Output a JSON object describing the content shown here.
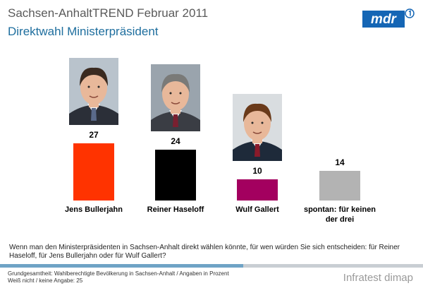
{
  "header": {
    "title": "Sachsen-AnhaltTREND Februar 2011",
    "subtitle": "Direktwahl Ministerpräsident"
  },
  "logo": {
    "text": "mdr",
    "icon": "ard-one-icon",
    "color": "#1566b5"
  },
  "chart_data": {
    "type": "bar",
    "categories": [
      "Jens Bullerjahn",
      "Reiner Haseloff",
      "Wulf Gallert",
      "spontan: für keinen der drei"
    ],
    "category_lines": [
      [
        "Jens Bullerjahn"
      ],
      [
        "Reiner Haseloff"
      ],
      [
        "Wulf Gallert"
      ],
      [
        "spontan: für keinen",
        "der drei"
      ]
    ],
    "values": [
      27,
      24,
      10,
      14
    ],
    "data_labels": [
      "27",
      "24",
      "10",
      "14"
    ],
    "colors": [
      "#ff3300",
      "#000000",
      "#a3005f",
      "#b3b3b3"
    ],
    "portraits": [
      true,
      true,
      true,
      false
    ],
    "ylim": [
      0,
      40
    ],
    "grid": false,
    "title": "",
    "xlabel": "",
    "ylabel": ""
  },
  "footer": {
    "question": "Wenn man den Ministerpräsidenten in Sachsen-Anhalt direkt wählen könnte, für wen würden Sie sich entscheiden: für Reiner Haseloff, für Jens Bullerjahn oder für Wulf Gallert?",
    "base_line1": "Grundgesamtheit: Wahlberechtigte Bevölkerung in Sachsen-Anhalt / Angaben in Prozent",
    "base_line2": "Weiß nicht / keine Angabe: 25",
    "brand": "Infratest dimap"
  }
}
